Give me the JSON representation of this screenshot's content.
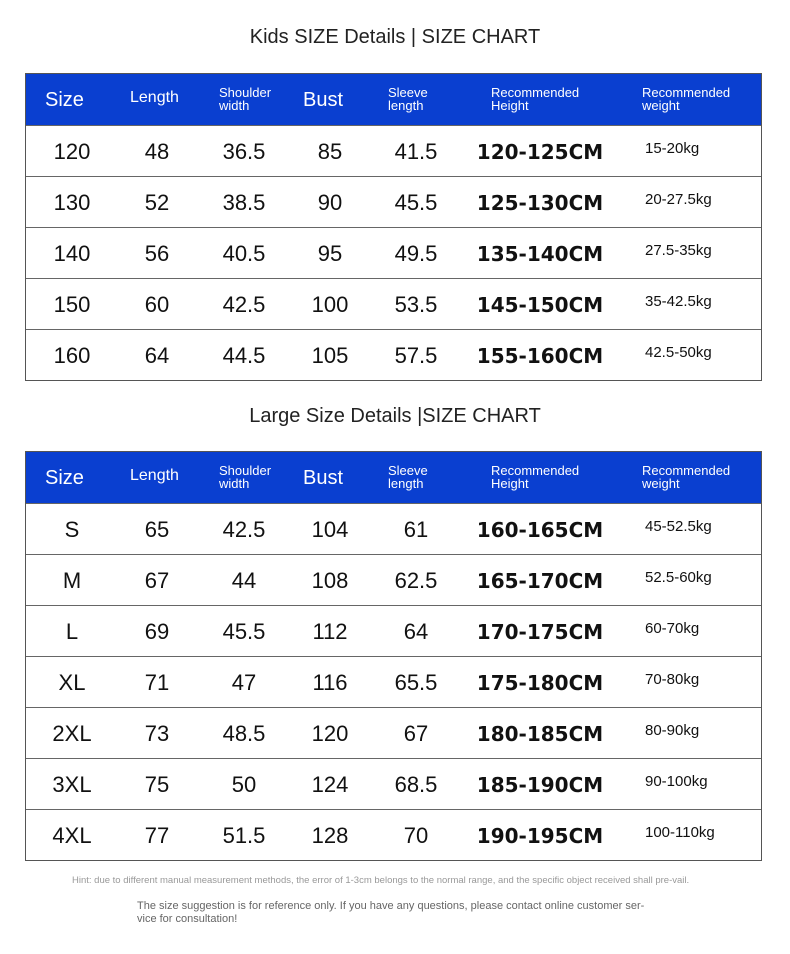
{
  "kids": {
    "title": "Kids SIZE Details | SIZE CHART",
    "headers": [
      "Size",
      "Length",
      "Shoulder width",
      "Bust",
      "Sleeve length",
      "Recommended Height",
      "Recommended weight"
    ],
    "rows": [
      [
        "120",
        "48",
        "36.5",
        "85",
        "41.5",
        "120-125CM",
        "15-20kg"
      ],
      [
        "130",
        "52",
        "38.5",
        "90",
        "45.5",
        "125-130CM",
        "20-27.5kg"
      ],
      [
        "140",
        "56",
        "40.5",
        "95",
        "49.5",
        "135-140CM",
        "27.5-35kg"
      ],
      [
        "150",
        "60",
        "42.5",
        "100",
        "53.5",
        "145-150CM",
        "35-42.5kg"
      ],
      [
        "160",
        "64",
        "44.5",
        "105",
        "57.5",
        "155-160CM",
        "42.5-50kg"
      ]
    ]
  },
  "large": {
    "title": "Large Size Details |SIZE CHART",
    "headers": [
      "Size",
      "Length",
      "Shoulder width",
      "Bust",
      "Sleeve length",
      "Recommended Height",
      "Recommended weight"
    ],
    "rows": [
      [
        "S",
        "65",
        "42.5",
        "104",
        "61",
        "160-165CM",
        "45-52.5kg"
      ],
      [
        "M",
        "67",
        "44",
        "108",
        "62.5",
        "165-170CM",
        "52.5-60kg"
      ],
      [
        "L",
        "69",
        "45.5",
        "112",
        "64",
        "170-175CM",
        "60-70kg"
      ],
      [
        "XL",
        "71",
        "47",
        "116",
        "65.5",
        "175-180CM",
        "70-80kg"
      ],
      [
        "2XL",
        "73",
        "48.5",
        "120",
        "67",
        "180-185CM",
        "80-90kg"
      ],
      [
        "3XL",
        "75",
        "50",
        "124",
        "68.5",
        "185-190CM",
        "90-100kg"
      ],
      [
        "4XL",
        "77",
        "51.5",
        "128",
        "70",
        "190-195CM",
        "100-110kg"
      ]
    ]
  },
  "hint": "Hint: due to different manual measurement methods, the error of 1-3cm belongs to the normal range, and the specific object received shall pre-vail.",
  "note": "The size suggestion is for reference only. If you have any questions, please contact online customer ser-vice for consultation!",
  "colors": {
    "header_bg": "#0a3fd0",
    "header_text": "#ffffff"
  }
}
